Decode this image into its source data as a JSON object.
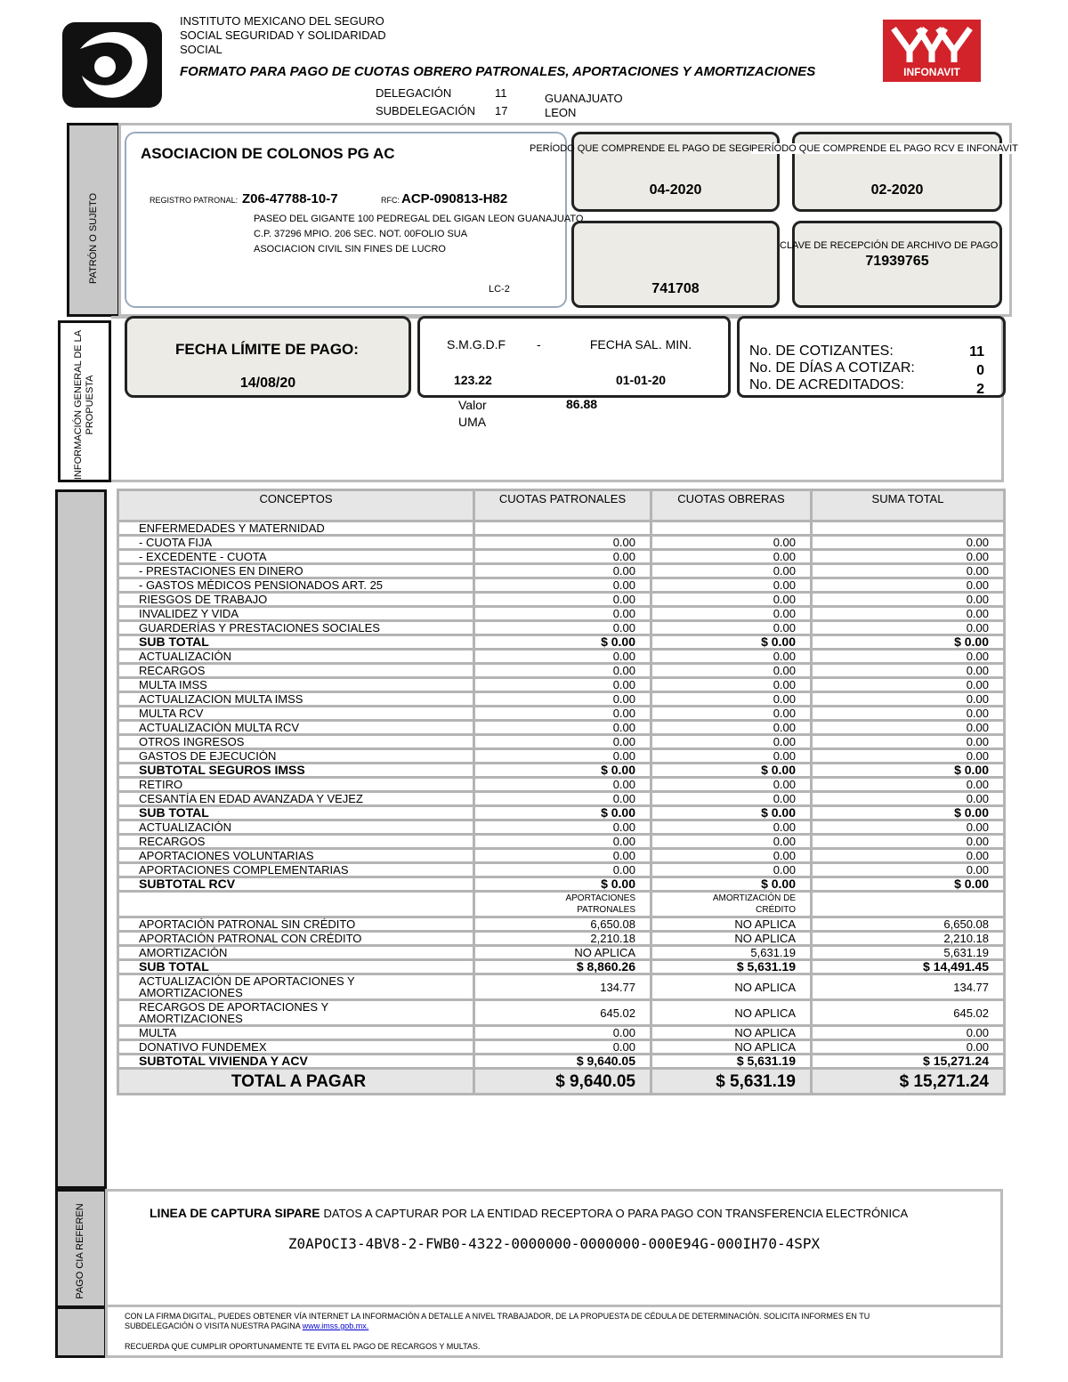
{
  "header": {
    "institution": [
      "INSTITUTO MEXICANO DEL SEGURO",
      "SOCIAL SEGURIDAD Y SOLIDARIDAD",
      "SOCIAL"
    ],
    "title": "FORMATO PARA PAGO DE CUOTAS OBRERO PATRONALES, APORTACIONES Y AMORTIZACIONES",
    "delegacion_label": "DELEGACIÓN",
    "delegacion_num": "11",
    "delegacion_name": "GUANAJUATO",
    "subdelegacion_label": "SUBDELEGACIÓN",
    "subdelegacion_num": "17",
    "subdelegacion_name": "LEON",
    "logo_text": "INFONAVIT"
  },
  "patron": {
    "side_label": "PATRÓN O SUJETO",
    "name": "ASOCIACION DE COLONOS PG AC",
    "registro_label": "REGISTRO PATRONAL:",
    "registro": "Z06-47788-10-7",
    "rfc_label": "RFC:",
    "rfc": "ACP-090813-H82",
    "address": [
      "PASEO DEL GIGANTE 100 PEDREGAL DEL GIGAN LEON GUANAJUATO",
      "C.P. 37296 MPIO. 206 SEC. NOT. 00FOLIO SUA",
      "ASOCIACION CIVIL SIN FINES DE LUCRO"
    ],
    "lc": "LC-2",
    "period_imss_label": "PERÍODO QUE COMPRENDE EL PAGO DE SEGURO IMSS",
    "period_imss": "04-2020",
    "period_rcv_label": "PERÍODO QUE COMPRENDE EL PAGO RCV E INFONAVIT",
    "period_rcv": "02-2020",
    "folio": "741708",
    "clave_label": "CLAVE DE RECEPCIÓN DE ARCHIVO DE PAGO",
    "clave": "71939765"
  },
  "info": {
    "side_label": "INFORMACIÓN GENERAL DE LA PROPUESTA",
    "fecha_limite_label": "FECHA LÍMITE DE PAGO:",
    "fecha_limite": "14/08/20",
    "smgdf_label": "S.M.G.D.F",
    "dash": "-",
    "smgdf": "123.22",
    "fecha_sal_label": "FECHA SAL. MIN.",
    "fecha_sal": "01-01-20",
    "uma_label": "Valor UMA",
    "uma": "86.88",
    "cotizantes_label": "No. DE COTIZANTES:",
    "cotizantes": "11",
    "dias_label": "No. DE DÍAS A COTIZAR:",
    "dias": "0",
    "acreditados_label": "No. DE ACREDITADOS:",
    "acreditados": "2"
  },
  "table": {
    "headers": [
      "CONCEPTOS",
      "CUOTAS PATRONALES",
      "CUOTAS OBRERAS",
      "SUMA TOTAL"
    ],
    "section1": [
      [
        "ENFERMEDADES Y MATERNIDAD"
      ],
      [
        "- CUOTA FIJA",
        "0.00",
        "0.00",
        "0.00"
      ],
      [
        "- EXCEDENTE - CUOTA",
        "0.00",
        "0.00",
        "0.00"
      ],
      [
        "- PRESTACIONES EN DINERO",
        "0.00",
        "0.00",
        "0.00"
      ],
      [
        "- GASTOS MÉDICOS PENSIONADOS ART. 25",
        "0.00",
        "0.00",
        "0.00"
      ],
      [
        "RIESGOS DE TRABAJO",
        "0.00",
        "0.00",
        "0.00"
      ],
      [
        "INVALIDEZ Y VIDA",
        "0.00",
        "0.00",
        "0.00"
      ],
      [
        "GUARDERÍAS Y PRESTACIONES SOCIALES",
        "0.00",
        "0.00",
        "0.00"
      ],
      [
        "SUB TOTAL",
        "$ 0.00",
        "$ 0.00",
        "$ 0.00"
      ],
      [
        "ACTUALIZACIÓN",
        "0.00",
        "0.00",
        "0.00"
      ],
      [
        "RECARGOS",
        "0.00",
        "0.00",
        "0.00"
      ],
      [
        "MULTA IMSS",
        "0.00",
        "0.00",
        "0.00"
      ],
      [
        "ACTUALIZACION MULTA IMSS",
        "0.00",
        "0.00",
        "0.00"
      ],
      [
        "MULTA RCV",
        "0.00",
        "0.00",
        "0.00"
      ],
      [
        "ACTUALIZACIÓN MULTA RCV",
        "0.00",
        "0.00",
        "0.00"
      ],
      [
        "OTROS INGRESOS",
        "0.00",
        "0.00",
        "0.00"
      ],
      [
        "GASTOS DE EJECUCIÓN",
        "0.00",
        "0.00",
        "0.00"
      ],
      [
        "SUBTOTAL SEGUROS IMSS",
        "$ 0.00",
        "$ 0.00",
        "$ 0.00"
      ],
      [
        "RETIRO",
        "0.00",
        "0.00",
        "0.00"
      ],
      [
        "CESANTÍA EN EDAD AVANZADA Y VEJEZ",
        "0.00",
        "0.00",
        "0.00"
      ],
      [
        "SUB TOTAL",
        "$ 0.00",
        "$ 0.00",
        "$ 0.00"
      ],
      [
        "ACTUALIZACIÓN",
        "0.00",
        "0.00",
        "0.00"
      ],
      [
        "RECARGOS",
        "0.00",
        "0.00",
        "0.00"
      ],
      [
        "APORTACIONES VOLUNTARIAS",
        "0.00",
        "0.00",
        "0.00"
      ],
      [
        "APORTACIONES COMPLEMENTARIAS",
        "0.00",
        "0.00",
        "0.00"
      ],
      [
        "SUBTOTAL RCV",
        "$ 0.00",
        "$ 0.00",
        "$ 0.00"
      ]
    ],
    "subheader": [
      "APORTACIONES PATRONALES",
      "AMORTIZACIÓN DE CRÉDITO"
    ],
    "section2": [
      [
        "APORTACIÓN PATRONAL SIN CRÉDITO",
        "6,650.08",
        "NO APLICA",
        "6,650.08"
      ],
      [
        "APORTACIÓN PATRONAL CON CRÉDITO",
        "2,210.18",
        "NO APLICA",
        "2,210.18"
      ],
      [
        "AMORTIZACIÓN",
        "NO APLICA",
        "5,631.19",
        "5,631.19"
      ],
      [
        "SUB TOTAL",
        "$ 8,860.26",
        "$ 5,631.19",
        "$ 14,491.45"
      ],
      [
        "ACTUALIZACIÓN DE APORTACIONES Y AMORTIZACIONES",
        "134.77",
        "NO APLICA",
        "134.77"
      ],
      [
        "RECARGOS DE APORTACIONES Y AMORTIZACIONES",
        "645.02",
        "NO APLICA",
        "645.02"
      ],
      [
        "MULTA",
        "0.00",
        "NO APLICA",
        "0.00"
      ],
      [
        "DONATIVO FUNDEMEX",
        "0.00",
        "NO APLICA",
        "0.00"
      ],
      [
        "SUBTOTAL VIVIENDA Y ACV",
        "$ 9,640.05",
        "$ 5,631.19",
        "$ 15,271.24"
      ]
    ],
    "total": [
      "TOTAL A PAGAR",
      "$ 9,640.05",
      "$ 5,631.19",
      "$ 15,271.24"
    ]
  },
  "footer": {
    "side_label": "PAGO CIA REFEREN",
    "sipare_label": "LINEA DE CAPTURA SIPARE",
    "sipare_desc": "DATOS A CAPTURAR POR LA ENTIDAD RECEPTORA O PARA PAGO CON TRANSFERENCIA ELECTRÓNICA",
    "capture_line": "Z0APOCI3-4BV8-2-FWB0-4322-0000000-0000000-000E94G-000IH70-4SPX",
    "note": "CON LA FIRMA DIGITAL, PUEDES OBTENER VÍA INTERNET LA INFORMACIÓN A DETALLE A NIVEL TRABAJADOR, DE LA PROPUESTA DE CÉDULA DE DETERMINACIÓN. SOLICITA INFORMES EN TU SUBDELEGACIÓN O VISITA NUESTRA PAGINA",
    "link": "www.imss.gob.mx.",
    "reminder": "RECUERDA QUE CUMPLIR OPORTUNAMENTE TE EVITA EL PAGO DE RECARGOS Y MULTAS."
  }
}
